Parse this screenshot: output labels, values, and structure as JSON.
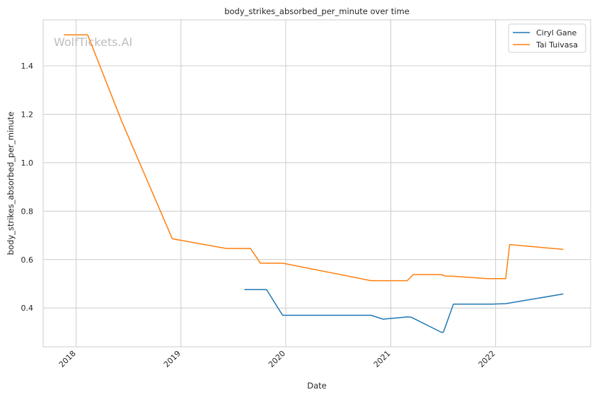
{
  "chart_data": {
    "type": "line",
    "title": "body_strikes_absorbed_per_minute over time",
    "xlabel": "Date",
    "ylabel": "body_strikes_absorbed_per_minute",
    "x_tick_labels": [
      "2018",
      "2019",
      "2020",
      "2021",
      "2022"
    ],
    "y_ticks": [
      0.4,
      0.6,
      0.8,
      1.0,
      1.2,
      1.4
    ],
    "y_tick_labels": [
      "0.4",
      "0.6",
      "0.8",
      "1.0",
      "1.2",
      "1.4"
    ],
    "xlim": [
      "2017-09-08",
      "2022-11-28"
    ],
    "ylim": [
      0.24,
      1.59
    ],
    "grid": true,
    "legend_position": "top-right",
    "watermark": "WolfTickets.AI",
    "series": [
      {
        "name": "Ciryl Gane",
        "color": "#1f77b4",
        "points": [
          [
            "2019-08-10",
            0.476
          ],
          [
            "2019-10-26",
            0.476
          ],
          [
            "2019-12-21",
            0.37
          ],
          [
            "2020-10-24",
            0.37
          ],
          [
            "2020-12-05",
            0.354
          ],
          [
            "2021-02-27",
            0.363
          ],
          [
            "2021-03-13",
            0.362
          ],
          [
            "2021-06-26",
            0.3
          ],
          [
            "2021-07-03",
            0.3
          ],
          [
            "2021-08-07",
            0.416
          ],
          [
            "2021-12-18",
            0.416
          ],
          [
            "2022-02-05",
            0.418
          ],
          [
            "2022-08-25",
            0.458
          ]
        ]
      },
      {
        "name": "Tai Tuivasa",
        "color": "#ff7f0e",
        "points": [
          [
            "2017-11-19",
            1.528
          ],
          [
            "2018-02-10",
            1.528
          ],
          [
            "2018-06-09",
            1.17
          ],
          [
            "2018-12-02",
            0.686
          ],
          [
            "2019-06-08",
            0.646
          ],
          [
            "2019-08-31",
            0.646
          ],
          [
            "2019-10-05",
            0.585
          ],
          [
            "2019-12-21",
            0.585
          ],
          [
            "2020-10-24",
            0.513
          ],
          [
            "2021-02-27",
            0.513
          ],
          [
            "2021-03-20",
            0.538
          ],
          [
            "2021-06-26",
            0.538
          ],
          [
            "2021-07-10",
            0.532
          ],
          [
            "2021-08-07",
            0.531
          ],
          [
            "2021-12-04",
            0.521
          ],
          [
            "2022-02-05",
            0.521
          ],
          [
            "2022-02-19",
            0.662
          ],
          [
            "2022-08-25",
            0.642
          ]
        ]
      }
    ]
  }
}
